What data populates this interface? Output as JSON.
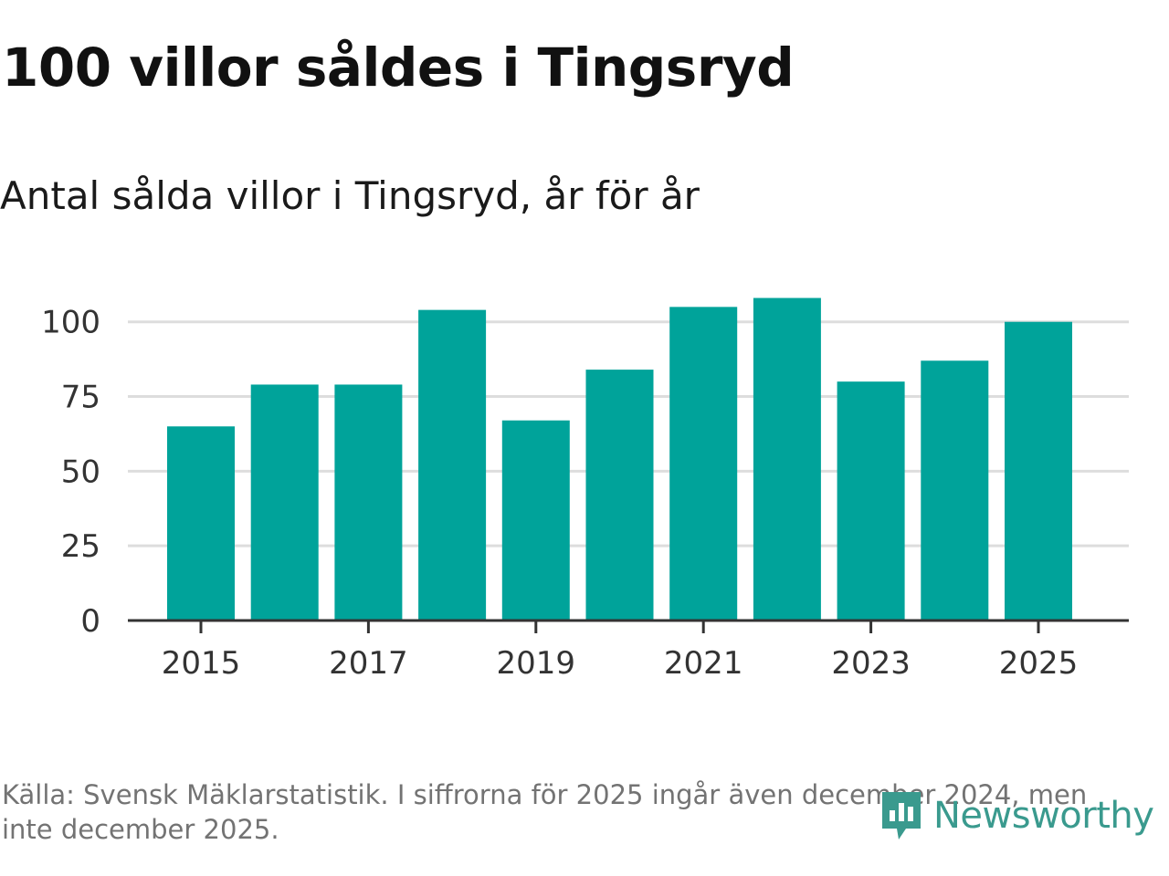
{
  "title": "100 villor såldes i Tingsryd",
  "subtitle": "Antal sålda villor i Tingsryd, år för år",
  "source": "Källa: Svensk Mäklarstatistik. I siffrorna för 2025 ingår även december 2024, men inte december 2025.",
  "logo": {
    "text": "Newsworthy",
    "icon": "newsworthy-logo-icon",
    "color": "#3a9a8e"
  },
  "colors": {
    "bar": "#00a39a",
    "grid": "#dddddd",
    "axis": "#333333"
  },
  "chart_data": {
    "type": "bar",
    "categories": [
      "2015",
      "2016",
      "2017",
      "2018",
      "2019",
      "2020",
      "2021",
      "2022",
      "2023",
      "2024",
      "2025"
    ],
    "values": [
      65,
      79,
      79,
      104,
      67,
      84,
      105,
      108,
      80,
      87,
      100
    ],
    "x_tick_labels": [
      "2015",
      "2017",
      "2019",
      "2021",
      "2023",
      "2025"
    ],
    "y_ticks": [
      0,
      25,
      50,
      75,
      100
    ],
    "ylim": [
      0,
      110
    ],
    "grid": true,
    "xlabel": "",
    "ylabel": ""
  }
}
